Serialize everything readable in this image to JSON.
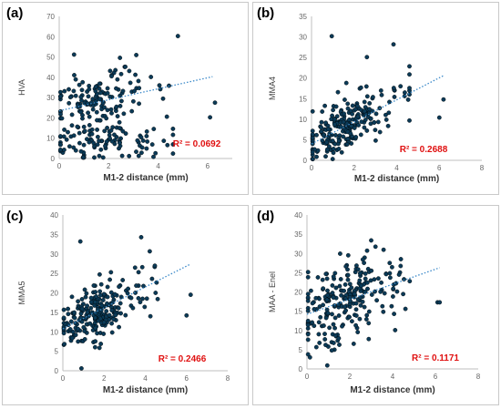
{
  "charts": [
    {
      "id": "a",
      "panel_label": "(a)",
      "type": "scatter",
      "ylabel": "HVA",
      "xlabel": "M1-2 distance (mm)",
      "xlim": [
        0,
        7
      ],
      "xticks": [
        0,
        2,
        4,
        6
      ],
      "ylim": [
        0,
        70
      ],
      "yticks": [
        0,
        10,
        20,
        30,
        40,
        50,
        60,
        70
      ],
      "r2_label": "R² = 0.0692",
      "trend": {
        "x0": 0.0,
        "y0": 23.5,
        "x1": 6.2,
        "y1": 40.3
      },
      "accent": "#0b3a57",
      "trend_color": "#3a89c9"
    },
    {
      "id": "b",
      "panel_label": "(b)",
      "type": "scatter",
      "ylabel": "MMA4",
      "xlabel": "M1-2 distance (mm)",
      "xlim": [
        0,
        8
      ],
      "xticks": [
        0,
        2,
        4,
        6,
        8
      ],
      "ylim": [
        0,
        35
      ],
      "yticks": [
        0,
        5,
        10,
        15,
        20,
        25,
        30,
        35
      ],
      "r2_label": "R² = 0.2688",
      "trend": {
        "x0": 0.0,
        "y0": 4.0,
        "x1": 6.2,
        "y1": 20.6
      },
      "accent": "#0b3a57",
      "trend_color": "#3a89c9"
    },
    {
      "id": "c",
      "panel_label": "(c)",
      "type": "scatter",
      "ylabel": "MMA5",
      "xlabel": "M1-2 distance (mm)",
      "xlim": [
        0,
        8
      ],
      "xticks": [
        0,
        2,
        4,
        6,
        8
      ],
      "ylim": [
        0,
        40
      ],
      "yticks": [
        0,
        5,
        10,
        15,
        20,
        25,
        30,
        35,
        40
      ],
      "r2_label": "R² = 0.2466",
      "trend": {
        "x0": 0.0,
        "y0": 10.8,
        "x1": 6.2,
        "y1": 27.4
      },
      "accent": "#0b3a57",
      "trend_color": "#3a89c9"
    },
    {
      "id": "d",
      "panel_label": "(d)",
      "type": "scatter",
      "ylabel": "MAA - Enel",
      "xlabel": "M1-2 distance (mm)",
      "xlim": [
        0,
        8
      ],
      "xticks": [
        0,
        2,
        4,
        6,
        8
      ],
      "ylim": [
        0,
        40
      ],
      "yticks": [
        0,
        5,
        10,
        15,
        20,
        25,
        30,
        35,
        40
      ],
      "r2_label": "R² = 0.1171",
      "trend": {
        "x0": 0.0,
        "y0": 14.2,
        "x1": 6.2,
        "y1": 26.3
      },
      "accent": "#0b3a57",
      "trend_color": "#3a89c9"
    }
  ]
}
